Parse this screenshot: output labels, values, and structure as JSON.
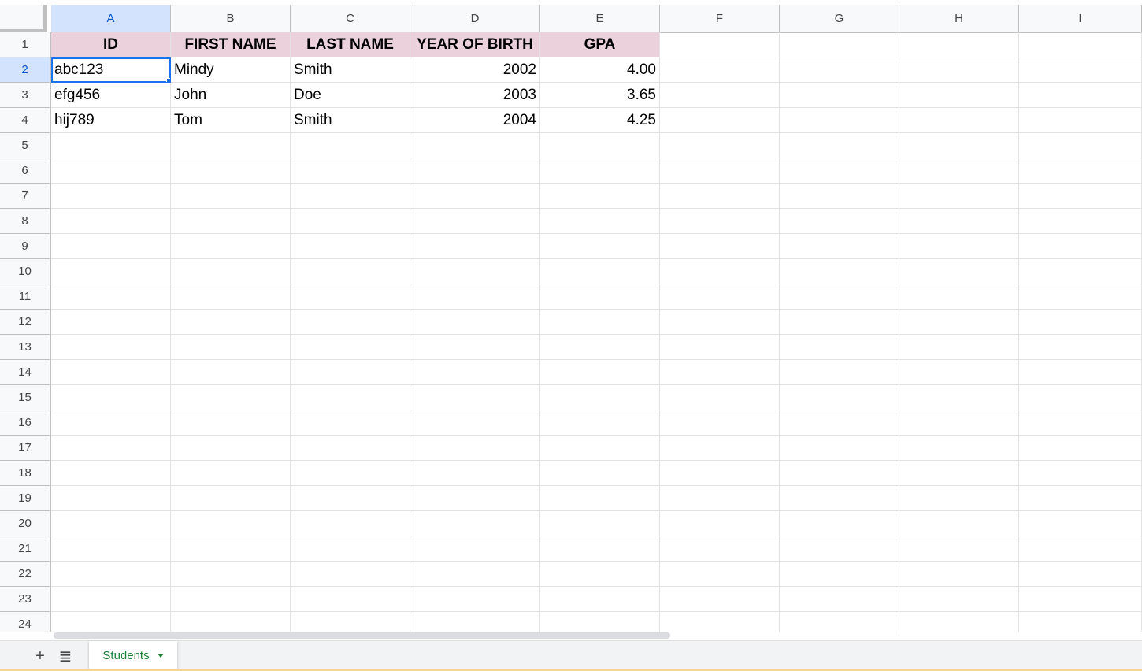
{
  "grid": {
    "columns": [
      "A",
      "B",
      "C",
      "D",
      "E",
      "F",
      "G",
      "H",
      "I"
    ],
    "rows": [
      "1",
      "2",
      "3",
      "4",
      "5",
      "6",
      "7",
      "8",
      "9",
      "10",
      "11",
      "12",
      "13",
      "14",
      "15",
      "16",
      "17",
      "18",
      "19",
      "20",
      "21",
      "22",
      "23",
      "24"
    ],
    "active_column": "A",
    "active_row": "2",
    "header_row": {
      "a": "ID",
      "b": "FIRST NAME",
      "c": "LAST NAME",
      "d": "YEAR OF BIRTH",
      "e": "GPA"
    },
    "data_rows": [
      {
        "a": "abc123",
        "b": "Mindy",
        "c": "Smith",
        "d": "2002",
        "e": "4.00"
      },
      {
        "a": "efg456",
        "b": "John",
        "c": "Doe",
        "d": "2003",
        "e": "3.65"
      },
      {
        "a": "hij789",
        "b": "Tom",
        "c": "Smith",
        "d": "2004",
        "e": "4.25"
      }
    ]
  },
  "bottom_bar": {
    "add_sheet_icon": "plus-icon",
    "all_sheets_icon": "list-icon",
    "add_sheet_glyph": "+",
    "all_sheets_glyph": "≣",
    "sheet_tab_label": "Students"
  },
  "colors": {
    "header_fill": "#ead1dc",
    "selection": "#1a73e8",
    "sheet_tab_text": "#188038"
  }
}
